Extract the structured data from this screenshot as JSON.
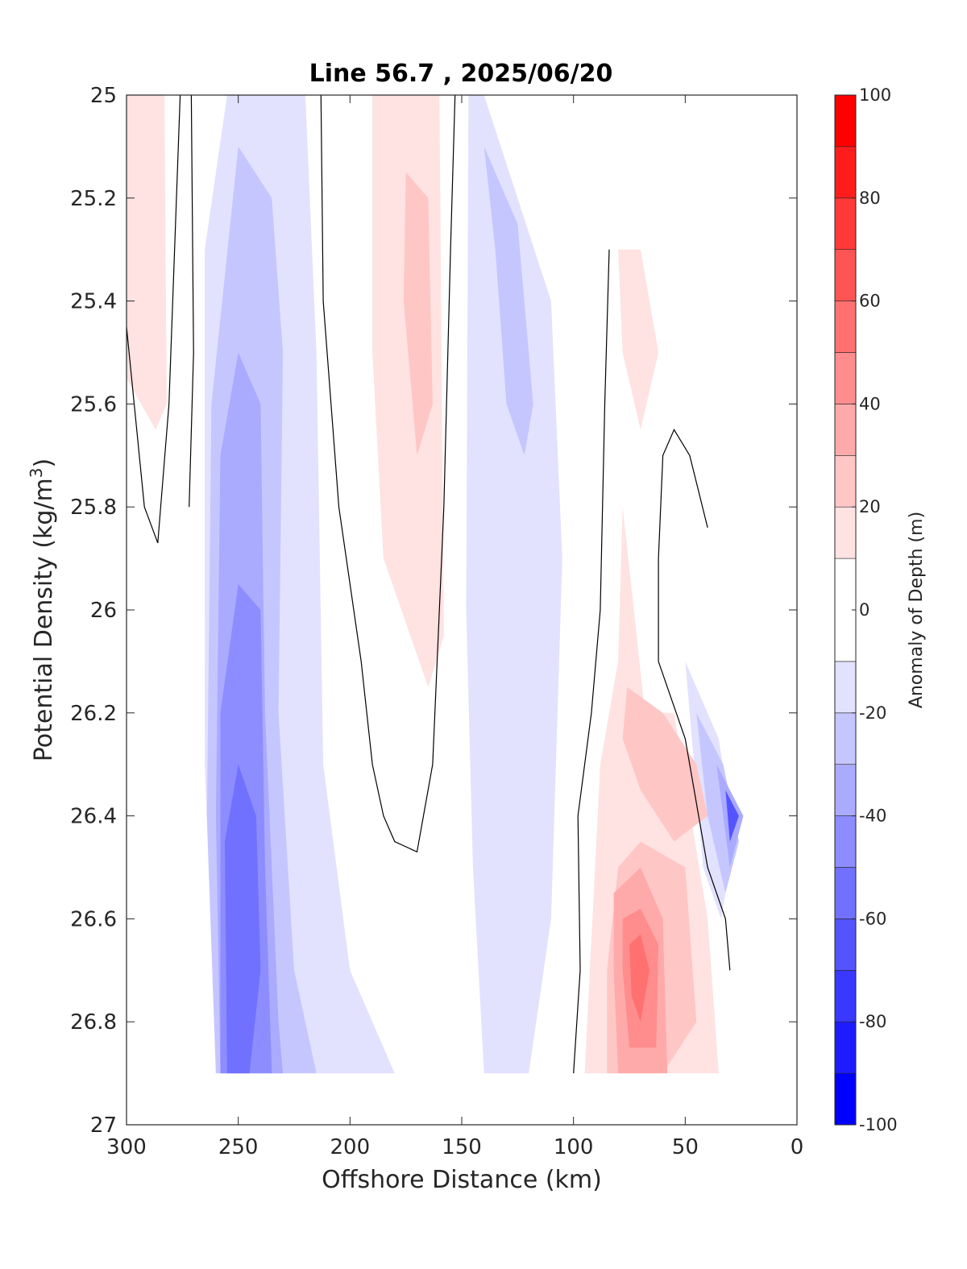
{
  "chart_data": {
    "type": "heatmap",
    "subtype": "filled-contour",
    "title": "Line 56.7 , 2025/06/20",
    "xlabel": "Offshore Distance (km)",
    "ylabel_main": "Potential Density (kg/m",
    "ylabel_sup": "3",
    "ylabel_tail": ")",
    "xlim": [
      300,
      0
    ],
    "ylim": [
      27,
      25
    ],
    "y_reversed": true,
    "x_reversed": true,
    "x_ticks": [
      300,
      250,
      200,
      150,
      100,
      50,
      0
    ],
    "x_tick_labels": [
      "300",
      "250",
      "200",
      "150",
      "100",
      "50",
      "0"
    ],
    "y_ticks": [
      25,
      25.2,
      25.4,
      25.6,
      25.8,
      26,
      26.2,
      26.4,
      26.6,
      26.8,
      27
    ],
    "y_tick_labels": [
      "25",
      "25.2",
      "25.4",
      "25.6",
      "25.8",
      "26",
      "26.2",
      "26.4",
      "26.6",
      "26.8",
      "27"
    ],
    "grid": false,
    "colorbar": {
      "label": "Anomaly of Depth (m)",
      "limits": [
        -100,
        100
      ],
      "levels": [
        -100,
        -90,
        -80,
        -70,
        -60,
        -50,
        -40,
        -30,
        -20,
        -10,
        10,
        20,
        30,
        40,
        50,
        60,
        70,
        80,
        90,
        100
      ],
      "ticks": [
        100,
        80,
        60,
        40,
        20,
        0,
        -20,
        -40,
        -60,
        -80,
        -100
      ],
      "tick_labels": [
        "100",
        "80",
        "60",
        "40",
        "20",
        "0",
        "-20",
        "-40",
        "-60",
        "-80",
        "-100"
      ],
      "colors_low_to_high": [
        "#0000ff",
        "#1c1cff",
        "#3838ff",
        "#5454ff",
        "#7171ff",
        "#8d8dff",
        "#aaaaff",
        "#c6c6ff",
        "#e2e2ff",
        "#ffffff",
        "#ffe2e2",
        "#ffc6c6",
        "#ffaaaa",
        "#ff8d8d",
        "#ff7171",
        "#ff5454",
        "#ff3838",
        "#ff1c1c",
        "#ff0000"
      ]
    },
    "regions": [
      {
        "level": -10,
        "points": [
          [
            300,
            25.6
          ],
          [
            292,
            25.4
          ],
          [
            288,
            26.2
          ],
          [
            276,
            26.7
          ],
          [
            276,
            26.9
          ],
          [
            300,
            26.9
          ]
        ]
      },
      {
        "level": -10,
        "points": [
          [
            271,
            25.0
          ],
          [
            210,
            25.0
          ],
          [
            208,
            25.5
          ],
          [
            200,
            26.0
          ],
          [
            195,
            26.5
          ],
          [
            175,
            26.8
          ],
          [
            160,
            26.7
          ],
          [
            155,
            26.3
          ],
          [
            150,
            25.0
          ],
          [
            140,
            25.0
          ],
          [
            110,
            25.4
          ],
          [
            95,
            25.6
          ],
          [
            100,
            26.6
          ],
          [
            110,
            26.9
          ],
          [
            250,
            26.9
          ],
          [
            270,
            26.3
          ],
          [
            272,
            25.6
          ]
        ]
      },
      {
        "level": -10,
        "points": [
          [
            40,
            25.95
          ],
          [
            33,
            26.2
          ],
          [
            28,
            26.5
          ],
          [
            32,
            26.75
          ],
          [
            55,
            26.2
          ],
          [
            55,
            25.95
          ]
        ]
      },
      {
        "level": -20,
        "points": [
          [
            265,
            25.3
          ],
          [
            255,
            25.0
          ],
          [
            220,
            25.0
          ],
          [
            215,
            25.5
          ],
          [
            212,
            26.3
          ],
          [
            200,
            26.7
          ],
          [
            180,
            26.9
          ],
          [
            260,
            26.9
          ],
          [
            265,
            26.3
          ]
        ]
      },
      {
        "level": -20,
        "points": [
          [
            147,
            25.0
          ],
          [
            140,
            25.0
          ],
          [
            110,
            25.4
          ],
          [
            105,
            25.9
          ],
          [
            110,
            26.6
          ],
          [
            120,
            26.9
          ],
          [
            140,
            26.9
          ],
          [
            145,
            26.5
          ],
          [
            148,
            26.0
          ]
        ]
      },
      {
        "level": -20,
        "points": [
          [
            50,
            26.1
          ],
          [
            35,
            26.25
          ],
          [
            28,
            26.45
          ],
          [
            34,
            26.6
          ],
          [
            42,
            26.5
          ],
          [
            46,
            26.3
          ]
        ]
      },
      {
        "level": -30,
        "points": [
          [
            262,
            25.6
          ],
          [
            250,
            25.1
          ],
          [
            235,
            25.2
          ],
          [
            230,
            25.5
          ],
          [
            232,
            26.2
          ],
          [
            225,
            26.7
          ],
          [
            215,
            26.9
          ],
          [
            260,
            26.9
          ],
          [
            264,
            26.4
          ]
        ]
      },
      {
        "level": -30,
        "points": [
          [
            140,
            25.1
          ],
          [
            125,
            25.25
          ],
          [
            118,
            25.6
          ],
          [
            122,
            25.7
          ],
          [
            130,
            25.6
          ],
          [
            135,
            25.3
          ]
        ]
      },
      {
        "level": -30,
        "points": [
          [
            45,
            26.2
          ],
          [
            33,
            26.3
          ],
          [
            26,
            26.45
          ],
          [
            32,
            26.55
          ],
          [
            40,
            26.4
          ]
        ]
      },
      {
        "level": -40,
        "points": [
          [
            258,
            25.7
          ],
          [
            250,
            25.5
          ],
          [
            240,
            25.6
          ],
          [
            238,
            26.2
          ],
          [
            232,
            26.8
          ],
          [
            230,
            26.9
          ],
          [
            258,
            26.9
          ],
          [
            260,
            26.4
          ]
        ]
      },
      {
        "level": -40,
        "points": [
          [
            36,
            26.3
          ],
          [
            24,
            26.4
          ],
          [
            30,
            26.5
          ]
        ]
      },
      {
        "level": -50,
        "points": [
          [
            258,
            26.2
          ],
          [
            250,
            25.95
          ],
          [
            240,
            26.0
          ],
          [
            238,
            26.5
          ],
          [
            235,
            26.9
          ],
          [
            258,
            26.9
          ]
        ]
      },
      {
        "level": -60,
        "points": [
          [
            256,
            26.45
          ],
          [
            250,
            26.3
          ],
          [
            242,
            26.4
          ],
          [
            240,
            26.7
          ],
          [
            245,
            26.9
          ],
          [
            255,
            26.9
          ]
        ]
      },
      {
        "level": -70,
        "points": [
          [
            32,
            26.35
          ],
          [
            26,
            26.4
          ],
          [
            30,
            26.45
          ]
        ]
      },
      {
        "level": 10,
        "points": [
          [
            300,
            25.0
          ],
          [
            283,
            25.0
          ],
          [
            282,
            25.6
          ],
          [
            287,
            25.65
          ],
          [
            300,
            25.55
          ]
        ]
      },
      {
        "level": 10,
        "points": [
          [
            190,
            25.0
          ],
          [
            160,
            25.0
          ],
          [
            158,
            26.05
          ],
          [
            165,
            26.15
          ],
          [
            185,
            25.9
          ],
          [
            190,
            25.5
          ]
        ]
      },
      {
        "level": 10,
        "points": [
          [
            80,
            25.3
          ],
          [
            70,
            25.3
          ],
          [
            62,
            25.5
          ],
          [
            70,
            25.65
          ],
          [
            78,
            25.5
          ]
        ]
      },
      {
        "level": 10,
        "points": [
          [
            78,
            25.8
          ],
          [
            68,
            26.2
          ],
          [
            55,
            26.2
          ],
          [
            40,
            26.6
          ],
          [
            35,
            26.9
          ],
          [
            95,
            26.9
          ],
          [
            88,
            26.3
          ],
          [
            80,
            26.1
          ]
        ]
      },
      {
        "level": 20,
        "points": [
          [
            175,
            25.15
          ],
          [
            165,
            25.2
          ],
          [
            163,
            25.6
          ],
          [
            170,
            25.7
          ],
          [
            176,
            25.4
          ]
        ]
      },
      {
        "level": 20,
        "points": [
          [
            76,
            26.15
          ],
          [
            60,
            26.2
          ],
          [
            45,
            26.3
          ],
          [
            40,
            26.4
          ],
          [
            55,
            26.45
          ],
          [
            70,
            26.35
          ],
          [
            78,
            26.25
          ]
        ]
      },
      {
        "level": 20,
        "points": [
          [
            80,
            26.5
          ],
          [
            70,
            26.45
          ],
          [
            50,
            26.5
          ],
          [
            45,
            26.8
          ],
          [
            60,
            26.9
          ],
          [
            85,
            26.9
          ],
          [
            85,
            26.7
          ]
        ]
      },
      {
        "level": 30,
        "points": [
          [
            82,
            26.55
          ],
          [
            70,
            26.5
          ],
          [
            60,
            26.6
          ],
          [
            58,
            26.9
          ],
          [
            80,
            26.9
          ],
          [
            82,
            26.7
          ]
        ]
      },
      {
        "level": 40,
        "points": [
          [
            78,
            26.6
          ],
          [
            70,
            26.58
          ],
          [
            62,
            26.65
          ],
          [
            63,
            26.85
          ],
          [
            75,
            26.85
          ],
          [
            78,
            26.7
          ]
        ]
      },
      {
        "level": 50,
        "points": [
          [
            75,
            26.65
          ],
          [
            70,
            26.63
          ],
          [
            66,
            26.7
          ],
          [
            70,
            26.8
          ],
          [
            74,
            26.75
          ]
        ]
      }
    ],
    "zero_contours": [
      [
        [
          300,
          25.45
        ],
        [
          292,
          25.8
        ],
        [
          286,
          25.87
        ],
        [
          281,
          25.6
        ],
        [
          276,
          25.0
        ]
      ],
      [
        [
          271,
          25.0
        ],
        [
          270,
          25.5
        ],
        [
          272,
          25.8
        ]
      ],
      [
        [
          213,
          25.0
        ],
        [
          212,
          25.4
        ],
        [
          205,
          25.8
        ],
        [
          195,
          26.1
        ],
        [
          190,
          26.3
        ],
        [
          185,
          26.4
        ],
        [
          180,
          26.45
        ],
        [
          170,
          26.47
        ],
        [
          163,
          26.3
        ],
        [
          158,
          25.8
        ],
        [
          155,
          25.3
        ],
        [
          153,
          25.0
        ]
      ],
      [
        [
          100,
          26.9
        ],
        [
          97,
          26.7
        ],
        [
          98,
          26.4
        ],
        [
          92,
          26.2
        ],
        [
          88,
          26.0
        ],
        [
          86,
          25.6
        ],
        [
          84,
          25.3
        ]
      ],
      [
        [
          40,
          25.84
        ],
        [
          48,
          25.7
        ],
        [
          55,
          25.65
        ],
        [
          60,
          25.7
        ],
        [
          62,
          25.9
        ],
        [
          62,
          26.1
        ],
        [
          58,
          26.15
        ],
        [
          50,
          26.25
        ],
        [
          40,
          26.5
        ],
        [
          32,
          26.6
        ],
        [
          30,
          26.7
        ]
      ]
    ]
  }
}
